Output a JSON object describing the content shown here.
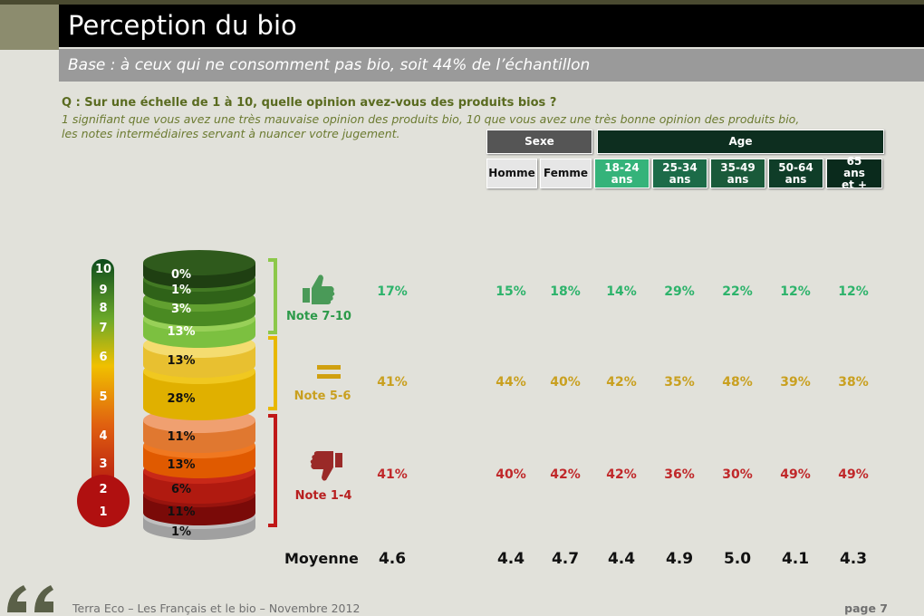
{
  "header": {
    "title": "Perception du bio",
    "subtitle": "Base : à ceux qui ne consomment pas bio, soit 44% de l’échantillon"
  },
  "question": {
    "text": "Q : Sur une échelle de 1 à 10, quelle opinion avez-vous des produits bios ?",
    "notes": [
      "1 signifiant que vous avez une très mauvaise opinion des produits bio, 10 que vous avez une très bonne opinion des produits bio,",
      "les notes intermédiaires servant à nuancer votre jugement."
    ]
  },
  "scale": [
    "10",
    "9",
    "8",
    "7",
    "6",
    "5",
    "4",
    "3",
    "2",
    "1"
  ],
  "cylinder": [
    "0%",
    "1%",
    "3%",
    "13%",
    "13%",
    "28%",
    "11%",
    "13%",
    "6%",
    "11%",
    "1%"
  ],
  "table": {
    "groups": [
      "Sexe",
      "Age"
    ],
    "columns": [
      "Homme",
      "Femme",
      "18-24 ans",
      "25-34 ans",
      "35-49 ans",
      "50-64 ans",
      "65 ans et +"
    ],
    "rows": [
      {
        "label": "Note 7-10",
        "total": "17%",
        "values": [
          "15%",
          "18%",
          "14%",
          "29%",
          "22%",
          "12%",
          "12%"
        ]
      },
      {
        "label": "Note 5-6",
        "total": "41%",
        "values": [
          "44%",
          "40%",
          "42%",
          "35%",
          "48%",
          "39%",
          "38%"
        ]
      },
      {
        "label": "Note 1-4",
        "total": "41%",
        "values": [
          "40%",
          "42%",
          "42%",
          "36%",
          "30%",
          "49%",
          "49%"
        ]
      }
    ],
    "average": {
      "label": "Moyenne",
      "total": "4.6",
      "values": [
        "4.4",
        "4.7",
        "4.4",
        "4.9",
        "5.0",
        "4.1",
        "4.3"
      ]
    }
  },
  "footer": {
    "source": "Terra Eco – Les Français et le bio – Novembre 2012",
    "page": "page 7"
  }
}
